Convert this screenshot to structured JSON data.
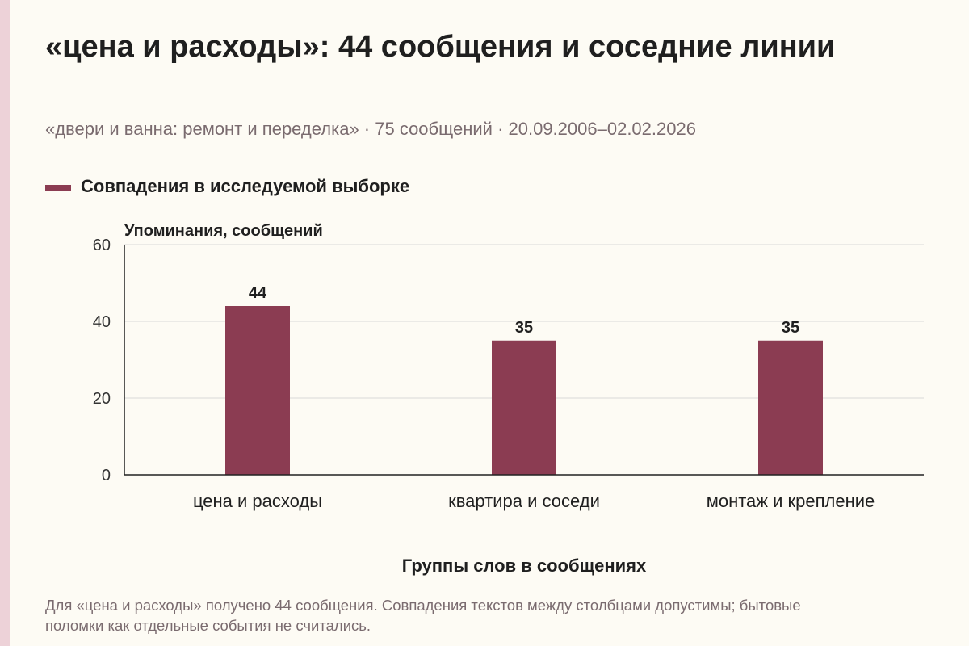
{
  "title": "«цена и расходы»: 44 сообщения и соседние линии",
  "subtitle": "«двери и ванна: ремонт и переделка» · 75 сообщений · 20.09.2006–02.02.2026",
  "legend": {
    "label": "Совпадения в исследуемой выборке"
  },
  "footnote": "Для «цена и расходы» получено 44 сообщения. Совпадения текстов между столбцами допустимы; бытовые поломки как отдельные события не считались.",
  "colors": {
    "bar": "#8b3c52",
    "grid": "#d9d9d9",
    "axis": "#222222"
  },
  "chart_data": {
    "type": "bar",
    "categories": [
      "цена и расходы",
      "квартира и соседи",
      "монтаж и крепление"
    ],
    "series": [
      {
        "name": "Совпадения в исследуемой выборке",
        "values": [
          44,
          35,
          35
        ]
      }
    ],
    "ylabel": "Упоминания, сообщений",
    "xlabel": "Группы слов в сообщениях",
    "ylim": [
      0,
      60
    ],
    "yticks": [
      0,
      20,
      40,
      60
    ],
    "grid": true,
    "legend_position": "top-left"
  }
}
